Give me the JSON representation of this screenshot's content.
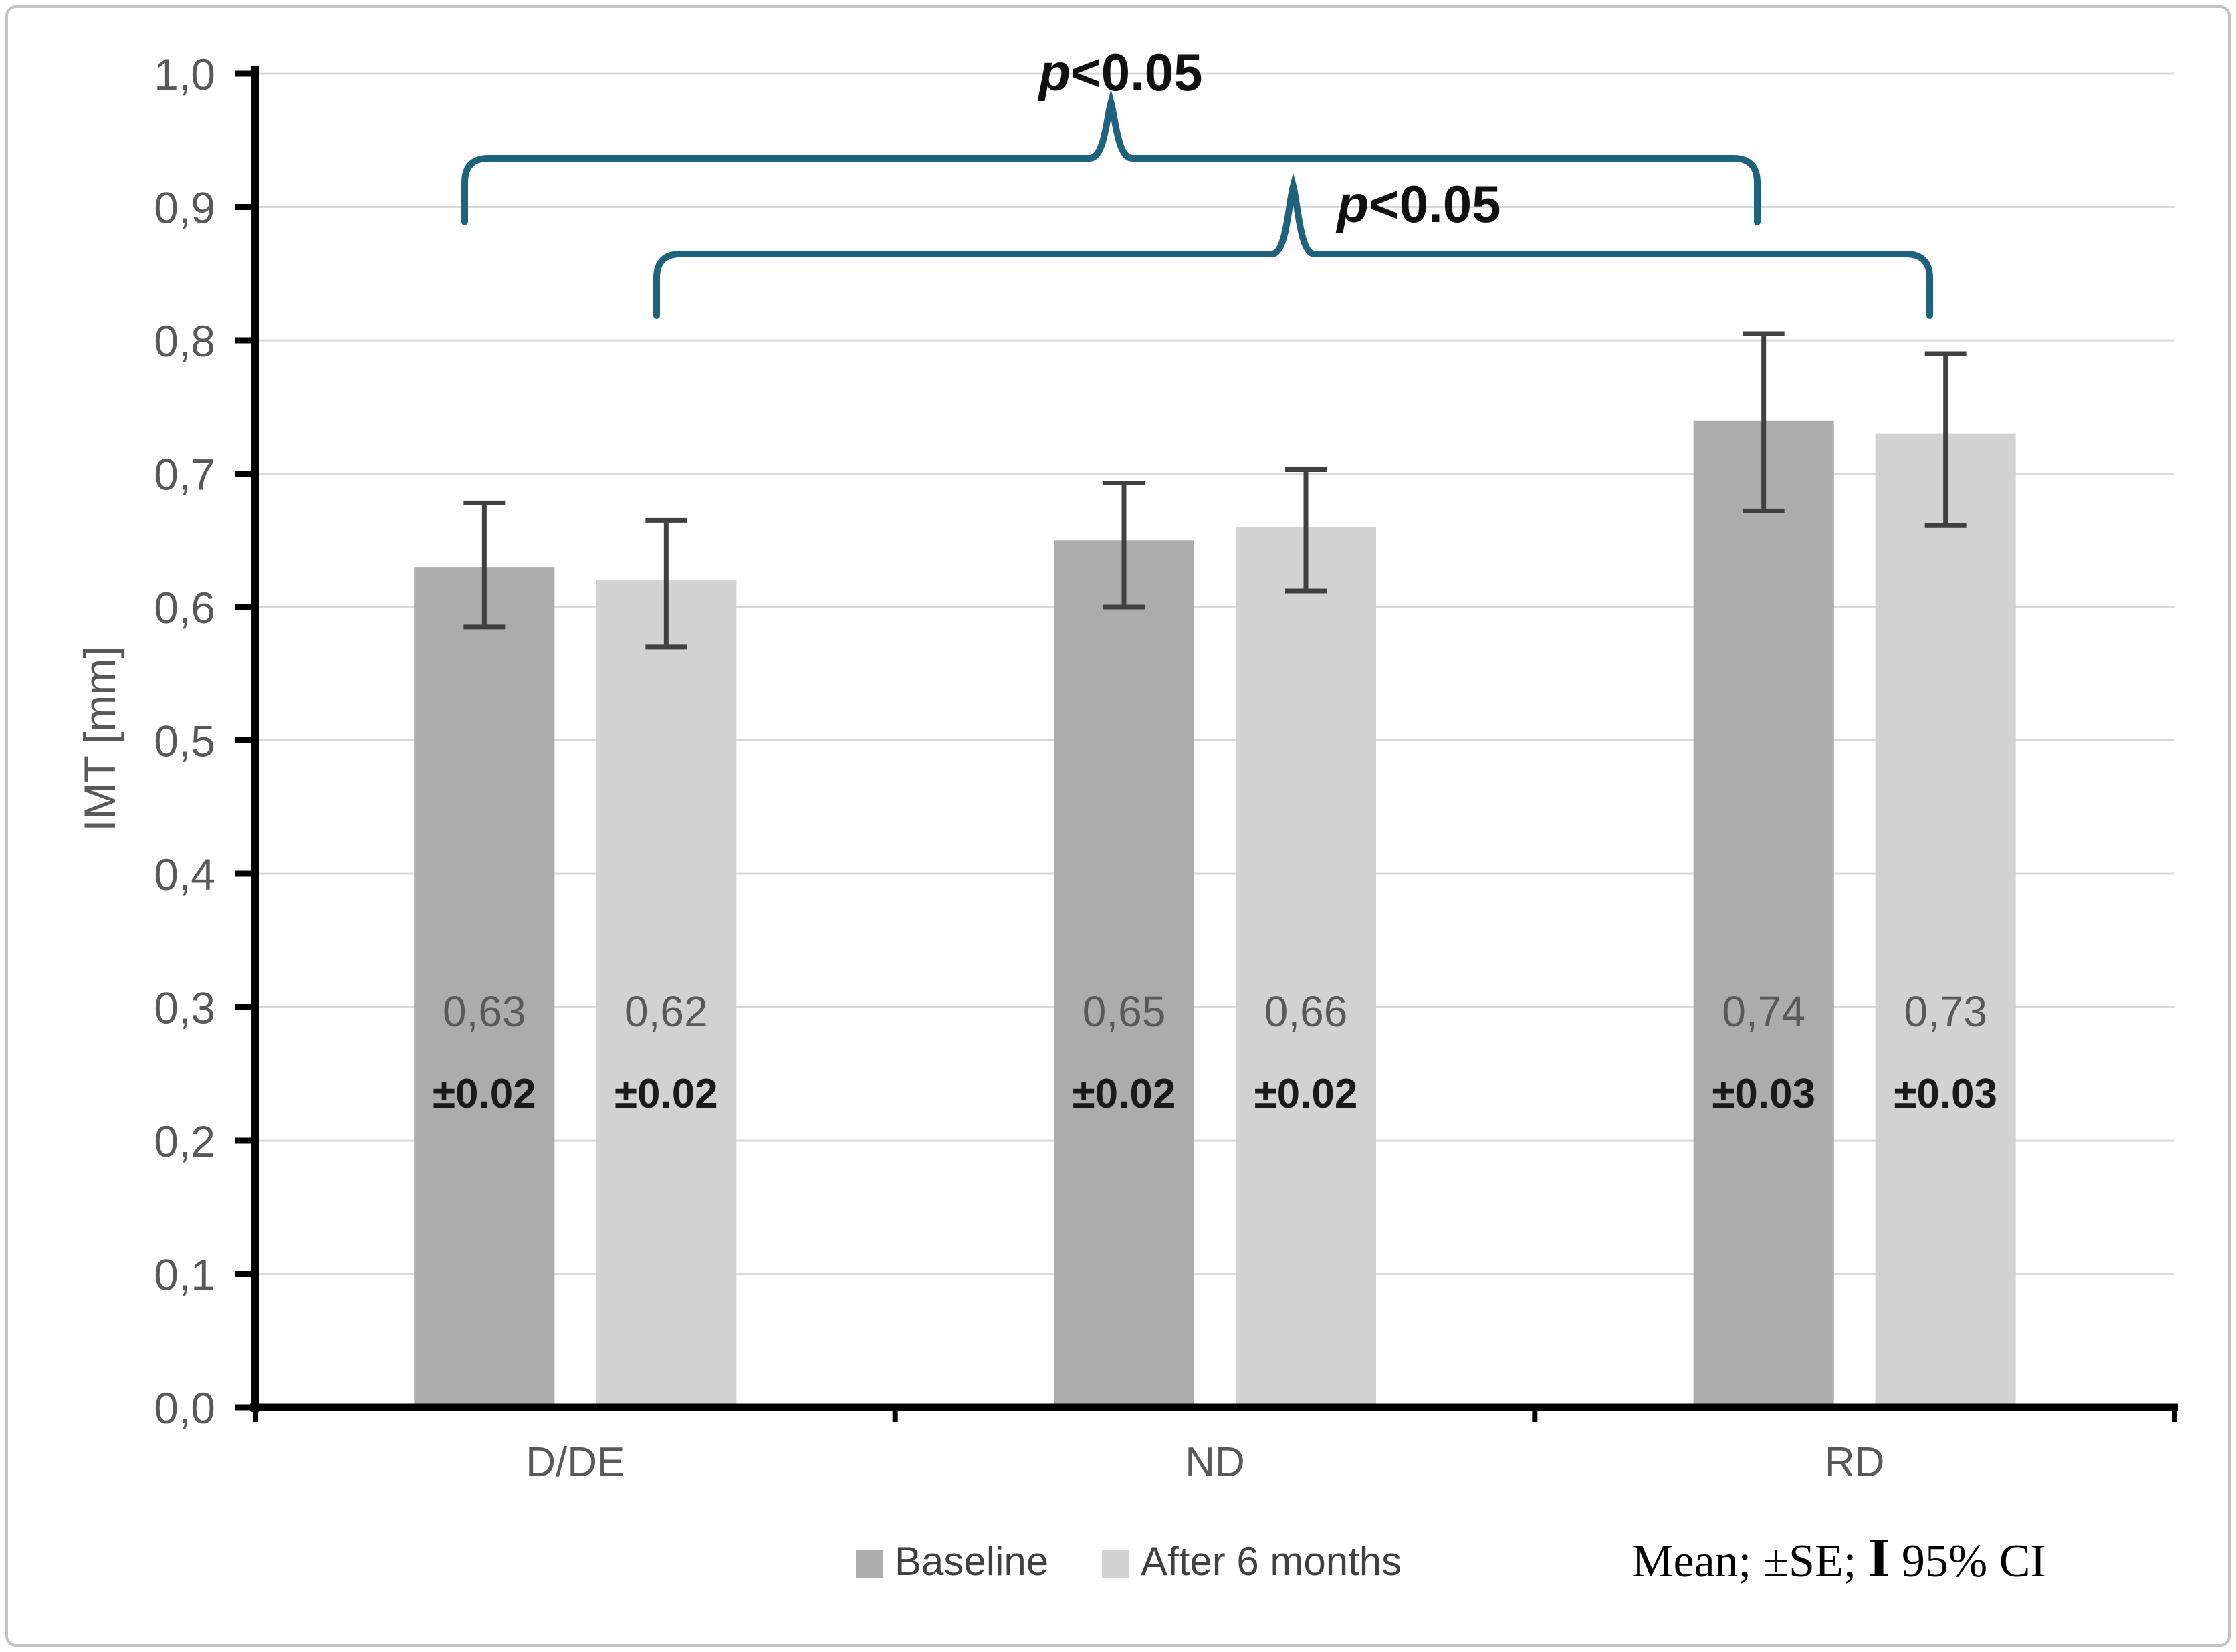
{
  "chart_data": {
    "type": "bar",
    "title": "",
    "xlabel": "",
    "ylabel": "IMT [mm]",
    "ylim": [
      0.0,
      1.0
    ],
    "ytick_step": 0.1,
    "yticks": [
      "0,0",
      "0,1",
      "0,2",
      "0,3",
      "0,4",
      "0,5",
      "0,6",
      "0,7",
      "0,8",
      "0,9",
      "1,0"
    ],
    "grid": true,
    "legend_position": "bottom",
    "decimal_separator": "comma",
    "categories": [
      "D/DE",
      "ND",
      "RD"
    ],
    "series": [
      {
        "name": "Baseline",
        "color": "#acacac",
        "values": [
          0.63,
          0.65,
          0.74
        ],
        "value_labels": [
          "0,63",
          "0,65",
          "0,74"
        ],
        "se_labels": [
          "±0.02",
          "±0.02",
          "±0.03"
        ],
        "ci_low": [
          0.585,
          0.6,
          0.672
        ],
        "ci_high": [
          0.678,
          0.693,
          0.805
        ]
      },
      {
        "name": "After 6 months",
        "color": "#d2d2d2",
        "values": [
          0.62,
          0.66,
          0.73
        ],
        "value_labels": [
          "0,62",
          "0,66",
          "0,73"
        ],
        "se_labels": [
          "±0.02",
          "±0.02",
          "±0.03"
        ],
        "ci_low": [
          0.57,
          0.612,
          0.661
        ],
        "ci_high": [
          0.665,
          0.703,
          0.79
        ]
      }
    ],
    "annotations": [
      {
        "label": "p<0.05",
        "label_italic": "p",
        "label_rest": "<0.05",
        "series": 0,
        "from_category": "D/DE",
        "to_category": "RD"
      },
      {
        "label": "p<0.05",
        "label_italic": "p",
        "label_rest": "<0.05",
        "series": 1,
        "from_category": "D/DE",
        "to_category": "RD"
      }
    ],
    "note": "Mean; ±SE; I 95% CI",
    "note_parts": {
      "prefix": "Mean; ±SE; ",
      "ibeam": "I",
      "suffix": " 95% CI"
    },
    "colors": {
      "bracket": "#1f627e",
      "gridline": "#d9d9d9",
      "axis": "#000000",
      "error_bar": "#404040",
      "tick_label": "#595959",
      "category_label": "#595959",
      "value_label": "#595959",
      "se_label": "#1a1a1a",
      "legend_text": "#404040",
      "note_text": "#000000"
    }
  }
}
